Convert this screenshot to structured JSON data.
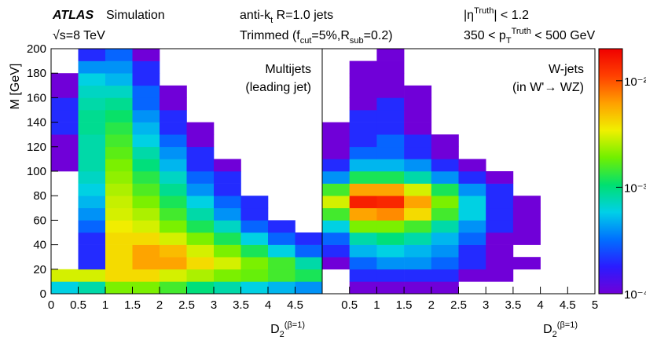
{
  "chart_data": {
    "type": "heatmap",
    "annotations": [
      {
        "parts": [
          "ATLAS"
        ],
        "shifts": [
          null
        ],
        "style": "bold-italic"
      },
      {
        "parts": [
          "Simulation"
        ],
        "shifts": [
          null
        ]
      },
      {
        "parts": [
          "√s=8 TeV"
        ],
        "shifts": [
          null
        ]
      },
      {
        "parts": [
          "anti-k",
          "t",
          " R=1.0 jets"
        ],
        "shifts": [
          null,
          "sub",
          null
        ]
      },
      {
        "parts": [
          "Trimmed (f",
          "cut",
          "=5%,R",
          "sub",
          "=0.2)"
        ],
        "shifts": [
          null,
          "sub",
          null,
          "sub",
          null
        ]
      },
      {
        "parts": [
          "|η",
          "Truth",
          "| < 1.2"
        ],
        "shifts": [
          null,
          "super",
          null
        ]
      },
      {
        "parts": [
          "350 < p",
          "T",
          "Truth",
          " < 500 GeV"
        ],
        "shifts": [
          null,
          "sub",
          "super",
          null
        ]
      }
    ],
    "xlabel": {
      "parts": [
        "D",
        "2",
        "(β=1)"
      ],
      "shifts": [
        null,
        "sub",
        "super"
      ]
    },
    "ylabel": "M [GeV]",
    "xlim": [
      0,
      5
    ],
    "ylim": [
      0,
      200
    ],
    "yticks": [
      0,
      20,
      40,
      60,
      80,
      100,
      120,
      140,
      160,
      180,
      200
    ],
    "xbins": [
      0,
      0.5,
      1,
      1.5,
      2,
      2.5,
      3,
      3.5,
      4,
      4.5,
      5
    ],
    "ybins": [
      0,
      10,
      20,
      30,
      40,
      50,
      60,
      70,
      80,
      90,
      100,
      110,
      120,
      130,
      140,
      150,
      160,
      170,
      180,
      190,
      200
    ],
    "zlim": [
      0.0001,
      0.02
    ],
    "zlog": true,
    "zticks": [
      {
        "value": 0.0001,
        "label": "10⁻⁴"
      },
      {
        "value": 0.001,
        "label": "10⁻³"
      },
      {
        "value": 0.01,
        "label": "10⁻²"
      }
    ],
    "colormap": [
      "#7000d8",
      "#2a1cff",
      "#0070ff",
      "#00d0e8",
      "#00e070",
      "#70f000",
      "#f0f000",
      "#ffa000",
      "#ff4000",
      "#f00000"
    ],
    "panels": [
      {
        "label_lines": [
          "Multijets",
          "(leading jet)"
        ],
        "xticks": [
          0,
          0.5,
          1,
          1.5,
          2,
          2.5,
          3,
          3.5,
          4,
          4.5
        ],
        "values": [
          [
            0.0006,
            0.0008,
            0.002,
            0.002,
            0.0015,
            0.001,
            0.0008,
            0.0006,
            0.0005,
            0.0004
          ],
          [
            0.003,
            0.003,
            0.004,
            0.004,
            0.003,
            0.0025,
            0.002,
            0.0018,
            0.0015,
            0.0012
          ],
          [
            null,
            0.0002,
            0.004,
            0.006,
            0.006,
            0.004,
            0.003,
            0.002,
            0.0015,
            0.0008
          ],
          [
            null,
            0.0002,
            0.004,
            0.006,
            0.005,
            0.003,
            0.002,
            0.0012,
            0.0006,
            0.0003
          ],
          [
            null,
            0.0002,
            0.004,
            0.004,
            0.003,
            0.002,
            0.0012,
            0.0006,
            0.0003,
            0.0002
          ],
          [
            null,
            0.0003,
            0.0035,
            0.003,
            0.002,
            0.0012,
            0.0007,
            0.0003,
            0.0002,
            null
          ],
          [
            null,
            0.0004,
            0.003,
            0.0025,
            0.0015,
            0.0008,
            0.0004,
            0.0002,
            null,
            null
          ],
          [
            null,
            0.0005,
            0.0028,
            0.002,
            0.0012,
            0.0006,
            0.0003,
            0.0002,
            null,
            null
          ],
          [
            null,
            0.0006,
            0.0025,
            0.0016,
            0.0009,
            0.0004,
            0.0002,
            null,
            null,
            null
          ],
          [
            null,
            0.0007,
            0.0022,
            0.0013,
            0.0007,
            0.0003,
            0.0002,
            null,
            null,
            null
          ],
          [
            0.0001,
            0.0008,
            0.002,
            0.001,
            0.0005,
            0.0002,
            0.0001,
            null,
            null,
            null
          ],
          [
            0.0001,
            0.0008,
            0.0017,
            0.0008,
            0.0004,
            0.0002,
            null,
            null,
            null,
            null
          ],
          [
            0.0001,
            0.0008,
            0.0015,
            0.0006,
            0.0003,
            0.0001,
            null,
            null,
            null,
            null
          ],
          [
            0.0002,
            0.0009,
            0.0013,
            0.0005,
            0.0002,
            0.0001,
            null,
            null,
            null,
            null
          ],
          [
            0.0002,
            0.0009,
            0.0011,
            0.0004,
            0.0002,
            null,
            null,
            null,
            null,
            null
          ],
          [
            0.0002,
            0.0008,
            0.0009,
            0.0003,
            0.0001,
            null,
            null,
            null,
            null,
            null
          ],
          [
            0.0001,
            0.0007,
            0.0007,
            0.0003,
            0.0001,
            null,
            null,
            null,
            null,
            null
          ],
          [
            0.0001,
            0.0006,
            0.0005,
            0.0002,
            null,
            null,
            null,
            null,
            null,
            null
          ],
          [
            null,
            0.0004,
            0.0004,
            0.0002,
            null,
            null,
            null,
            null,
            null,
            null
          ],
          [
            null,
            0.0002,
            0.0003,
            0.0001,
            null,
            null,
            null,
            null,
            null,
            null
          ]
        ]
      },
      {
        "label_lines": [
          "W-jets",
          "(in W'→ WZ)"
        ],
        "xticks": [
          0.5,
          1,
          1.5,
          2,
          2.5,
          3,
          3.5,
          4,
          4.5,
          5
        ],
        "values": [
          [
            null,
            0.0001,
            0.0001,
            0.0001,
            0.0001,
            null,
            null,
            null,
            null,
            null
          ],
          [
            null,
            0.0002,
            0.0002,
            0.0002,
            0.0002,
            0.0001,
            0.0001,
            null,
            null,
            null
          ],
          [
            0.0001,
            0.0003,
            0.0004,
            0.0004,
            0.0003,
            0.0002,
            0.0001,
            0.0001,
            null,
            null
          ],
          [
            0.0002,
            0.0005,
            0.0006,
            0.0005,
            0.0004,
            0.0002,
            0.0001,
            null,
            null,
            null
          ],
          [
            0.0003,
            0.0008,
            0.001,
            0.0008,
            0.0005,
            0.0003,
            0.0001,
            0.0001,
            null,
            null
          ],
          [
            0.0006,
            0.002,
            0.002,
            0.0015,
            0.0008,
            0.0004,
            0.0002,
            0.0001,
            null,
            null
          ],
          [
            0.0015,
            0.006,
            0.007,
            0.004,
            0.0015,
            0.0006,
            0.0002,
            0.0001,
            null,
            null
          ],
          [
            0.003,
            0.015,
            0.014,
            0.006,
            0.002,
            0.0006,
            0.0002,
            0.0001,
            null,
            null
          ],
          [
            0.0015,
            0.006,
            0.006,
            0.003,
            0.0012,
            0.0004,
            0.0002,
            null,
            null,
            null
          ],
          [
            0.0004,
            0.0012,
            0.0012,
            0.0008,
            0.0004,
            0.0002,
            0.0001,
            null,
            null,
            null
          ],
          [
            0.0002,
            0.0005,
            0.0005,
            0.0004,
            0.0002,
            0.0001,
            null,
            null,
            null,
            null
          ],
          [
            0.0001,
            0.0003,
            0.0003,
            0.0002,
            0.0001,
            null,
            null,
            null,
            null,
            null
          ],
          [
            0.0001,
            0.0002,
            0.0003,
            0.0002,
            0.0001,
            null,
            null,
            null,
            null,
            null
          ],
          [
            0.0001,
            0.0002,
            0.0002,
            0.0001,
            null,
            null,
            null,
            null,
            null,
            null
          ],
          [
            null,
            0.0002,
            0.0002,
            0.0001,
            null,
            null,
            null,
            null,
            null,
            null
          ],
          [
            null,
            0.0001,
            0.0002,
            0.0001,
            null,
            null,
            null,
            null,
            null,
            null
          ],
          [
            null,
            0.0001,
            0.0001,
            0.0001,
            null,
            null,
            null,
            null,
            null,
            null
          ],
          [
            null,
            0.0001,
            0.0001,
            null,
            null,
            null,
            null,
            null,
            null,
            null
          ],
          [
            null,
            0.0001,
            0.0001,
            null,
            null,
            null,
            null,
            null,
            null,
            null
          ],
          [
            null,
            null,
            0.0001,
            null,
            null,
            null,
            null,
            null,
            null,
            null
          ]
        ]
      }
    ]
  }
}
